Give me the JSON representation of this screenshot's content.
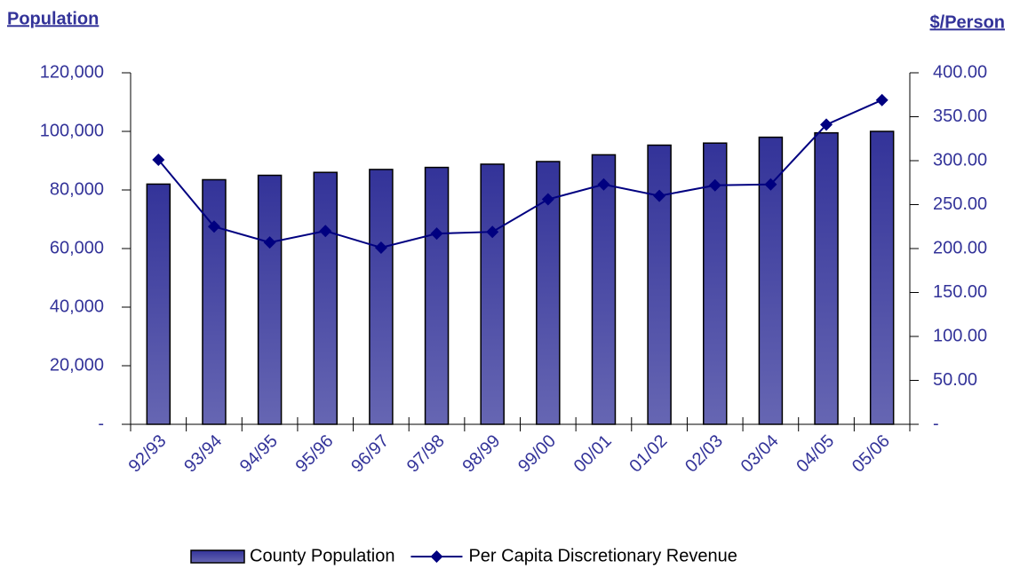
{
  "chart_data": {
    "type": "bar_line",
    "y_title": "Population",
    "y2_title": "$/Person",
    "categories": [
      "92/93",
      "93/94",
      "94/95",
      "95/96",
      "96/97",
      "97/98",
      "98/99",
      "99/00",
      "00/01",
      "01/02",
      "02/03",
      "03/04",
      "04/05",
      "05/06"
    ],
    "series": [
      {
        "name": "County Population",
        "type": "bar",
        "color": "#333399",
        "values": [
          82000,
          83500,
          85000,
          86000,
          87000,
          87700,
          88800,
          89700,
          92000,
          95300,
          96000,
          98000,
          99500,
          100000
        ]
      },
      {
        "name": "Per Capita Discretionary Revenue",
        "type": "line",
        "axis": "y2",
        "color": "#000080",
        "values": [
          301,
          225,
          207,
          220,
          201,
          217,
          219,
          256,
          273,
          260,
          272,
          273,
          341,
          369
        ]
      }
    ],
    "ylim": [
      0,
      120000
    ],
    "yticks": [
      {
        "value": 0,
        "label": "-"
      },
      {
        "value": 20000,
        "label": "20,000"
      },
      {
        "value": 40000,
        "label": "40,000"
      },
      {
        "value": 60000,
        "label": "60,000"
      },
      {
        "value": 80000,
        "label": "80,000"
      },
      {
        "value": 100000,
        "label": "100,000"
      },
      {
        "value": 120000,
        "label": "120,000"
      }
    ],
    "y2lim": [
      0,
      400
    ],
    "y2ticks": [
      {
        "value": 0,
        "label": "-"
      },
      {
        "value": 50,
        "label": "50.00"
      },
      {
        "value": 100,
        "label": "100.00"
      },
      {
        "value": 150,
        "label": "150.00"
      },
      {
        "value": 200,
        "label": "200.00"
      },
      {
        "value": 250,
        "label": "250.00"
      },
      {
        "value": 300,
        "label": "300.00"
      },
      {
        "value": 350,
        "label": "350.00"
      },
      {
        "value": 400,
        "label": "400.00"
      }
    ],
    "grid": false,
    "legend": "bottom"
  }
}
